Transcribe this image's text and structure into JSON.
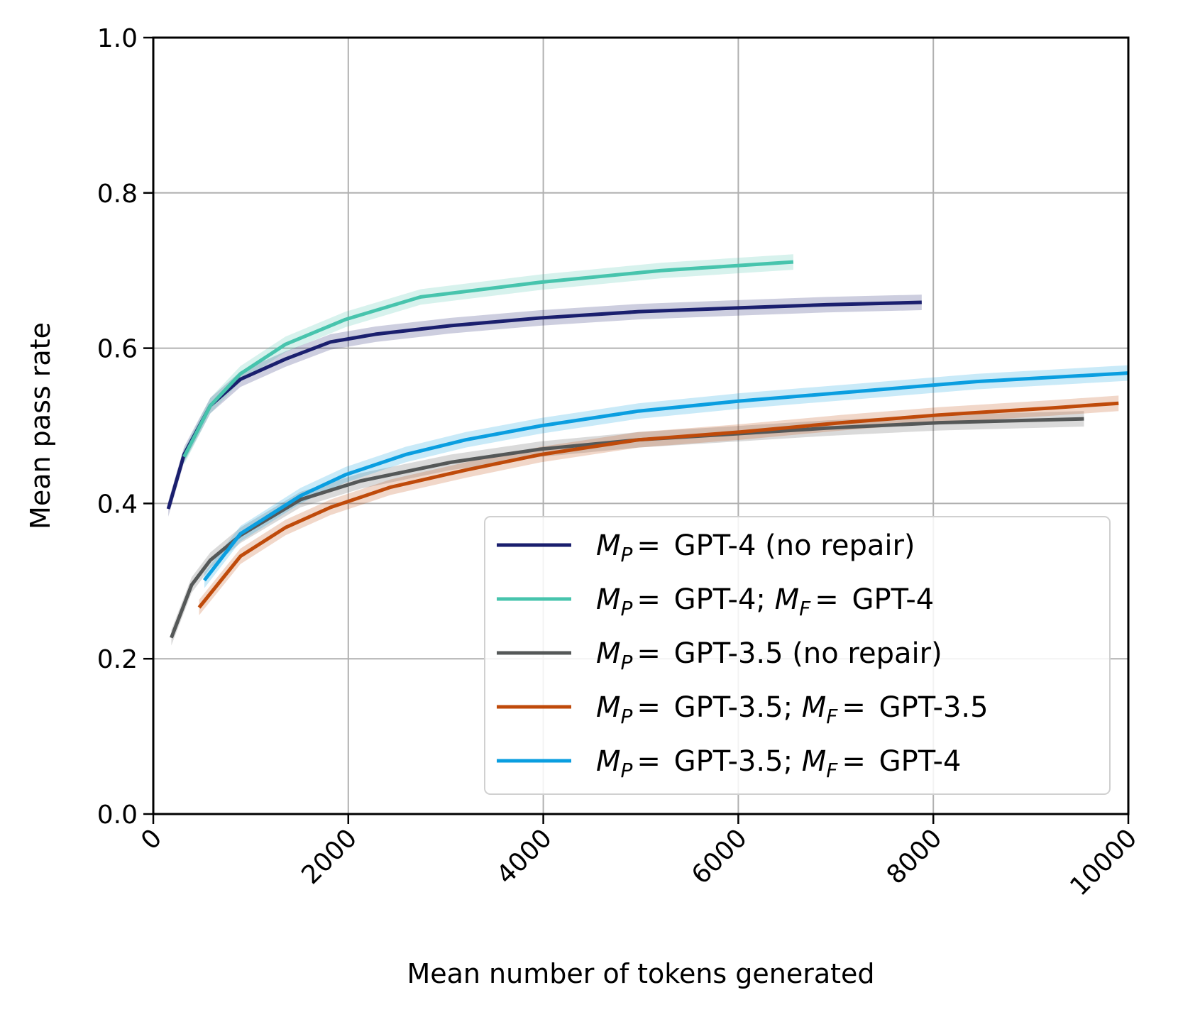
{
  "chart_data": {
    "type": "line",
    "title": "",
    "xlabel": "Mean number of tokens generated",
    "ylabel": "Mean pass rate",
    "xlim": [
      0,
      10000
    ],
    "ylim": [
      0,
      1.0
    ],
    "xticks": [
      "0",
      "2000",
      "4000",
      "6000",
      "8000",
      "10000"
    ],
    "yticks": [
      "0.0",
      "0.2",
      "0.4",
      "0.6",
      "0.8",
      "1.0"
    ],
    "grid": true,
    "legend_position": "lower-right",
    "band_halfwidth": 0.01,
    "series": [
      {
        "name": "M_P = GPT-4 (no repair)",
        "color": "#1a1f6e",
        "label": {
          "sym": "M",
          "sub1": "P",
          "eq1": "= ",
          "txt1": "GPT-4 (no repair)"
        },
        "x": [
          154,
          316,
          585,
          894,
          1356,
          1818,
          2280,
          3050,
          3975,
          4977,
          6017,
          6903,
          7881
        ],
        "y": [
          0.393,
          0.463,
          0.526,
          0.56,
          0.586,
          0.608,
          0.618,
          0.629,
          0.639,
          0.647,
          0.652,
          0.656,
          0.659
        ]
      },
      {
        "name": "M_P = GPT-4; M_F = GPT-4",
        "color": "#47c4ad",
        "label": {
          "sym": "M",
          "sub1": "P",
          "eq1": "= ",
          "txt1": "GPT-4; ",
          "sym2": "M",
          "sub2": "F",
          "eq2": "= ",
          "txt2": "GPT-4"
        },
        "x": [
          316,
          585,
          894,
          1356,
          1972,
          2743,
          3975,
          5208,
          6564
        ],
        "y": [
          0.46,
          0.526,
          0.567,
          0.605,
          0.637,
          0.666,
          0.685,
          0.7,
          0.711
        ]
      },
      {
        "name": "M_P = GPT-3.5 (no repair)",
        "color": "#555858",
        "label": {
          "sym": "M",
          "sub1": "P",
          "eq1": "= ",
          "txt1": "GPT-3.5 (no repair)"
        },
        "x": [
          185,
          393,
          585,
          894,
          1510,
          2126,
          3050,
          3975,
          4977,
          6017,
          6903,
          8058,
          9545
        ],
        "y": [
          0.227,
          0.295,
          0.327,
          0.359,
          0.405,
          0.429,
          0.453,
          0.47,
          0.482,
          0.49,
          0.497,
          0.504,
          0.509
        ]
      },
      {
        "name": "M_P = GPT-3.5; M_F = GPT-3.5",
        "color": "#bf4a0a",
        "label": {
          "sym": "M",
          "sub1": "P",
          "eq1": "= ",
          "txt1": "GPT-3.5; ",
          "sym2": "M",
          "sub2": "F",
          "eq2": "= ",
          "txt2": "GPT-3.5"
        },
        "x": [
          470,
          894,
          1356,
          1818,
          2435,
          3205,
          3975,
          4977,
          6017,
          7057,
          8058,
          9214,
          9900
        ],
        "y": [
          0.266,
          0.332,
          0.369,
          0.395,
          0.421,
          0.443,
          0.463,
          0.482,
          0.492,
          0.504,
          0.514,
          0.523,
          0.529
        ]
      },
      {
        "name": "M_P = GPT-3.5; M_F = GPT-4",
        "color": "#0a9ee0",
        "label": {
          "sym": "M",
          "sub1": "P",
          "eq1": "= ",
          "txt1": "GPT-3.5; ",
          "sym2": "M",
          "sub2": "F",
          "eq2": "= ",
          "txt2": "GPT-4"
        },
        "x": [
          524,
          894,
          1510,
          1972,
          2589,
          3205,
          3975,
          4977,
          6017,
          7288,
          8444,
          10000
        ],
        "y": [
          0.301,
          0.361,
          0.41,
          0.437,
          0.463,
          0.482,
          0.5,
          0.519,
          0.532,
          0.545,
          0.557,
          0.568
        ]
      }
    ]
  }
}
